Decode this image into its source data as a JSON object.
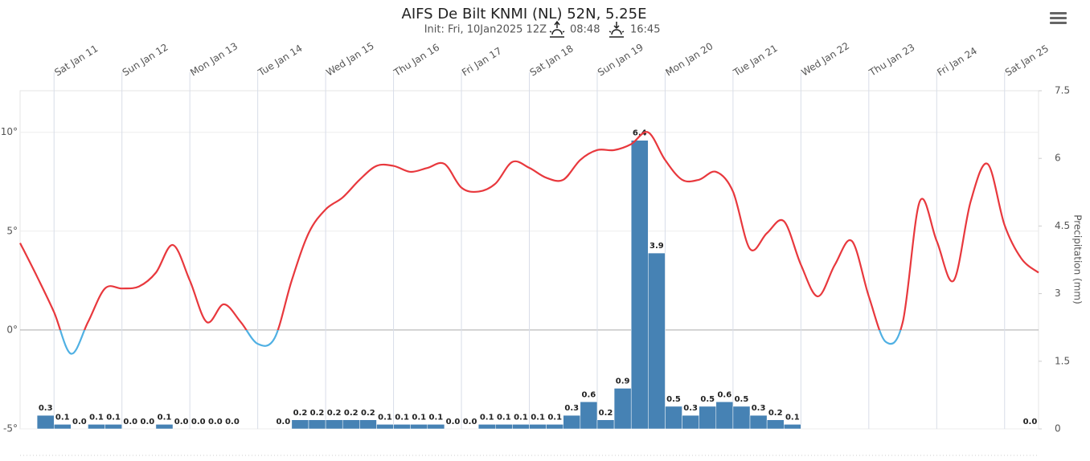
{
  "chart_data": {
    "type": "combo",
    "title": "AIFS De Bilt KNMI (NL) 52N, 5.25E",
    "subtitle": "Init: Fri, 10Jan2025 12Z",
    "sunrise": "08:48",
    "sunset": "16:45",
    "xlim": [
      0,
      360
    ],
    "xticks": [
      {
        "value": 12,
        "label": "Sat Jan 11"
      },
      {
        "value": 36,
        "label": "Sun Jan 12"
      },
      {
        "value": 60,
        "label": "Mon Jan 13"
      },
      {
        "value": 84,
        "label": "Tue Jan 14"
      },
      {
        "value": 108,
        "label": "Wed Jan 15"
      },
      {
        "value": 132,
        "label": "Thu Jan 16"
      },
      {
        "value": 156,
        "label": "Fri Jan 17"
      },
      {
        "value": 180,
        "label": "Sat Jan 18"
      },
      {
        "value": 204,
        "label": "Sun Jan 19"
      },
      {
        "value": 228,
        "label": "Mon Jan 20"
      },
      {
        "value": 252,
        "label": "Tue Jan 21"
      },
      {
        "value": 276,
        "label": "Wed Jan 22"
      },
      {
        "value": 300,
        "label": "Thu Jan 23"
      },
      {
        "value": 324,
        "label": "Fri Jan 24"
      },
      {
        "value": 348,
        "label": "Sat Jan 25"
      }
    ],
    "ylim": [
      -5,
      12.1
    ],
    "yticks": [
      {
        "value": -5,
        "label": "-5°"
      },
      {
        "value": 0,
        "label": "0°"
      },
      {
        "value": 5,
        "label": "5°"
      },
      {
        "value": 10,
        "label": "10°"
      }
    ],
    "y2lim": [
      0,
      7.5
    ],
    "y2ticks": [
      0,
      1.5,
      3,
      4.5,
      6,
      7.5
    ],
    "y2label": "Precipitation (mm)",
    "grid": true,
    "series": [
      {
        "type": "line",
        "color": "#e8383d",
        "negative_color": "#4fb0e3",
        "x": [
          0,
          6,
          12,
          18,
          24,
          30,
          36,
          42,
          48,
          54,
          60,
          66,
          72,
          78,
          84,
          90,
          96,
          102,
          108,
          114,
          120,
          126,
          132,
          138,
          144,
          150,
          156,
          162,
          168,
          174,
          180,
          186,
          192,
          198,
          204,
          210,
          216,
          222,
          228,
          234,
          240,
          246,
          252,
          258,
          264,
          270,
          276,
          282,
          288,
          294,
          300,
          306,
          312,
          318,
          324,
          330,
          336,
          342,
          348,
          354,
          360
        ],
        "values": [
          4.4,
          2.7,
          0.9,
          -1.2,
          0.4,
          2.1,
          2.1,
          2.2,
          2.9,
          4.3,
          2.5,
          0.4,
          1.3,
          0.4,
          -0.7,
          -0.4,
          2.5,
          4.9,
          6.1,
          6.7,
          7.6,
          8.3,
          8.3,
          8.0,
          8.2,
          8.4,
          7.2,
          7.0,
          7.4,
          8.5,
          8.2,
          7.7,
          7.6,
          8.6,
          9.1,
          9.1,
          9.4,
          10.0,
          8.6,
          7.6,
          7.6,
          8.0,
          7.0,
          4.1,
          4.9,
          5.5,
          3.3,
          1.7,
          3.3,
          4.5,
          1.7,
          -0.6,
          0.4,
          6.5,
          4.5,
          2.5,
          6.5,
          8.4,
          5.3,
          3.6,
          2.9
        ]
      },
      {
        "type": "bar",
        "axis": "y2",
        "color": "#4682b4",
        "x": [
          9,
          15,
          21,
          27,
          33,
          39,
          45,
          51,
          57,
          63,
          69,
          75,
          93,
          99,
          105,
          111,
          117,
          123,
          129,
          135,
          141,
          147,
          153,
          159,
          165,
          171,
          177,
          183,
          189,
          195,
          201,
          207,
          213,
          219,
          225,
          231,
          237,
          243,
          249,
          255,
          261,
          267,
          273,
          357
        ],
        "values": [
          0.3,
          0.1,
          0.0,
          0.1,
          0.1,
          0.0,
          0.0,
          0.1,
          0.0,
          0.0,
          0.0,
          0.0,
          0.0,
          0.2,
          0.2,
          0.2,
          0.2,
          0.2,
          0.1,
          0.1,
          0.1,
          0.1,
          0.0,
          0.0,
          0.1,
          0.1,
          0.1,
          0.1,
          0.1,
          0.3,
          0.6,
          0.2,
          0.9,
          6.4,
          3.9,
          0.5,
          0.3,
          0.5,
          0.6,
          0.5,
          0.3,
          0.2,
          0.1,
          0.0
        ],
        "value_labels": [
          "0.3",
          "0.1",
          "0.0",
          "0.1",
          "0.1",
          "0.0",
          "0.0",
          "0.1",
          "0.0",
          "0.0",
          "0.0",
          "0.0",
          "0.0",
          "0.2",
          "0.2",
          "0.2",
          "0.2",
          "0.2",
          "0.1",
          "0.1",
          "0.1",
          "0.1",
          "0.0",
          "0.0",
          "0.1",
          "0.1",
          "0.1",
          "0.1",
          "0.1",
          "0.3",
          "0.6",
          "0.2",
          "0.9",
          "6.4",
          "3.9",
          "0.5",
          "0.3",
          "0.5",
          "0.6",
          "0.5",
          "0.3",
          "0.2",
          "0.1",
          "0.0"
        ]
      }
    ]
  }
}
